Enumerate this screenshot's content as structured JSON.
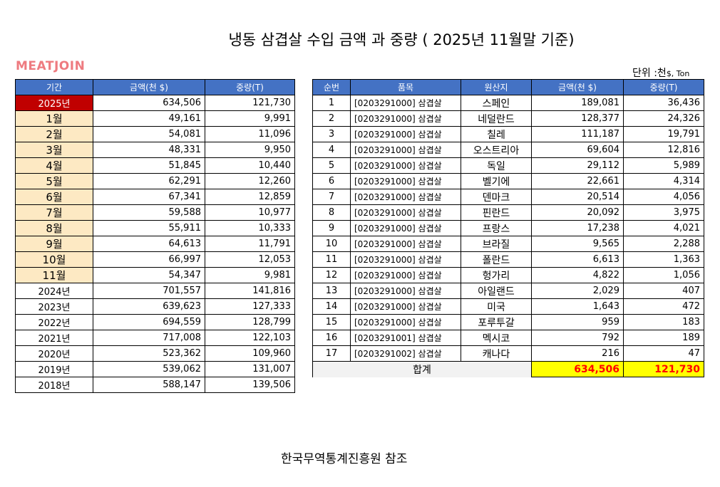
{
  "title": "냉동  삼겹살  수입 금액 과 중량 ( 2025년 11월말 기준)",
  "brand": "MEATJOIN",
  "unit": {
    "prefix": "단위 :천",
    "suffix": "$, Ton"
  },
  "footer": "한국무역통계진흥원 참조",
  "left": {
    "headers": [
      "기간",
      "금액(천 $)",
      "중량(T)"
    ],
    "rows": [
      {
        "period": "2025년",
        "amount": "634,506",
        "weight": "121,730",
        "style": "highlight"
      },
      {
        "period": "1월",
        "amount": "49,161",
        "weight": "9,991",
        "style": "month"
      },
      {
        "period": "2월",
        "amount": "54,081",
        "weight": "11,096",
        "style": "month"
      },
      {
        "period": "3월",
        "amount": "48,331",
        "weight": "9,950",
        "style": "month"
      },
      {
        "period": "4월",
        "amount": "51,845",
        "weight": "10,440",
        "style": "month"
      },
      {
        "period": "5월",
        "amount": "62,291",
        "weight": "12,260",
        "style": "month"
      },
      {
        "period": "6월",
        "amount": "67,341",
        "weight": "12,859",
        "style": "month"
      },
      {
        "period": "7월",
        "amount": "59,588",
        "weight": "10,977",
        "style": "month"
      },
      {
        "period": "8월",
        "amount": "55,911",
        "weight": "10,333",
        "style": "month"
      },
      {
        "period": "9월",
        "amount": "64,613",
        "weight": "11,791",
        "style": "month"
      },
      {
        "period": "10월",
        "amount": "66,997",
        "weight": "12,053",
        "style": "month"
      },
      {
        "period": "11월",
        "amount": "54,347",
        "weight": "9,981",
        "style": "month"
      },
      {
        "period": "2024년",
        "amount": "701,557",
        "weight": "141,816",
        "style": "year"
      },
      {
        "period": "2023년",
        "amount": "639,623",
        "weight": "127,333",
        "style": "year"
      },
      {
        "period": "2022년",
        "amount": "694,559",
        "weight": "128,799",
        "style": "year"
      },
      {
        "period": "2021년",
        "amount": "717,008",
        "weight": "122,103",
        "style": "year"
      },
      {
        "period": "2020년",
        "amount": "523,362",
        "weight": "109,960",
        "style": "year"
      },
      {
        "period": "2019년",
        "amount": "539,062",
        "weight": "131,007",
        "style": "year"
      },
      {
        "period": "2018년",
        "amount": "588,147",
        "weight": "139,506",
        "style": "year"
      }
    ]
  },
  "right": {
    "headers": [
      "순번",
      "품목",
      "원산지",
      "금액(천 $)",
      "중량(T)"
    ],
    "rows": [
      {
        "no": "1",
        "item": "[0203291000] 삼겹살",
        "origin": "스페인",
        "amount": "189,081",
        "weight": "36,436"
      },
      {
        "no": "2",
        "item": "[0203291000] 삼겹살",
        "origin": "네덜란드",
        "amount": "128,377",
        "weight": "24,326"
      },
      {
        "no": "3",
        "item": "[0203291000] 삼겹살",
        "origin": "칠레",
        "amount": "111,187",
        "weight": "19,791"
      },
      {
        "no": "4",
        "item": "[0203291000] 삼겹살",
        "origin": "오스트리아",
        "amount": "69,604",
        "weight": "12,816"
      },
      {
        "no": "5",
        "item": "[0203291000] 삼겹살",
        "origin": "독일",
        "amount": "29,112",
        "weight": "5,989"
      },
      {
        "no": "6",
        "item": "[0203291000] 삼겹살",
        "origin": "벨기에",
        "amount": "22,661",
        "weight": "4,314"
      },
      {
        "no": "7",
        "item": "[0203291000] 삼겹살",
        "origin": "덴마크",
        "amount": "20,514",
        "weight": "4,056"
      },
      {
        "no": "8",
        "item": "[0203291000] 삼겹살",
        "origin": "핀란드",
        "amount": "20,092",
        "weight": "3,975"
      },
      {
        "no": "9",
        "item": "[0203291000] 삼겹살",
        "origin": "프랑스",
        "amount": "17,238",
        "weight": "4,021"
      },
      {
        "no": "10",
        "item": "[0203291000] 삼겹살",
        "origin": "브라질",
        "amount": "9,565",
        "weight": "2,288"
      },
      {
        "no": "11",
        "item": "[0203291000] 삼겹살",
        "origin": "폴란드",
        "amount": "6,613",
        "weight": "1,363"
      },
      {
        "no": "12",
        "item": "[0203291000] 삼겹살",
        "origin": "헝가리",
        "amount": "4,822",
        "weight": "1,056"
      },
      {
        "no": "13",
        "item": "[0203291000] 삼겹살",
        "origin": "아일랜드",
        "amount": "2,029",
        "weight": "407"
      },
      {
        "no": "14",
        "item": "[0203291000] 삼겹살",
        "origin": "미국",
        "amount": "1,643",
        "weight": "472"
      },
      {
        "no": "15",
        "item": "[0203291000] 삼겹살",
        "origin": "포루투갈",
        "amount": "959",
        "weight": "183"
      },
      {
        "no": "16",
        "item": "[0203291001] 삼겹살",
        "origin": "멕시코",
        "amount": "792",
        "weight": "189"
      },
      {
        "no": "17",
        "item": "[0203291002] 삼겹살",
        "origin": "캐나다",
        "amount": "216",
        "weight": "47"
      }
    ],
    "total": {
      "label": "합계",
      "amount": "634,506",
      "weight": "121,730"
    }
  }
}
